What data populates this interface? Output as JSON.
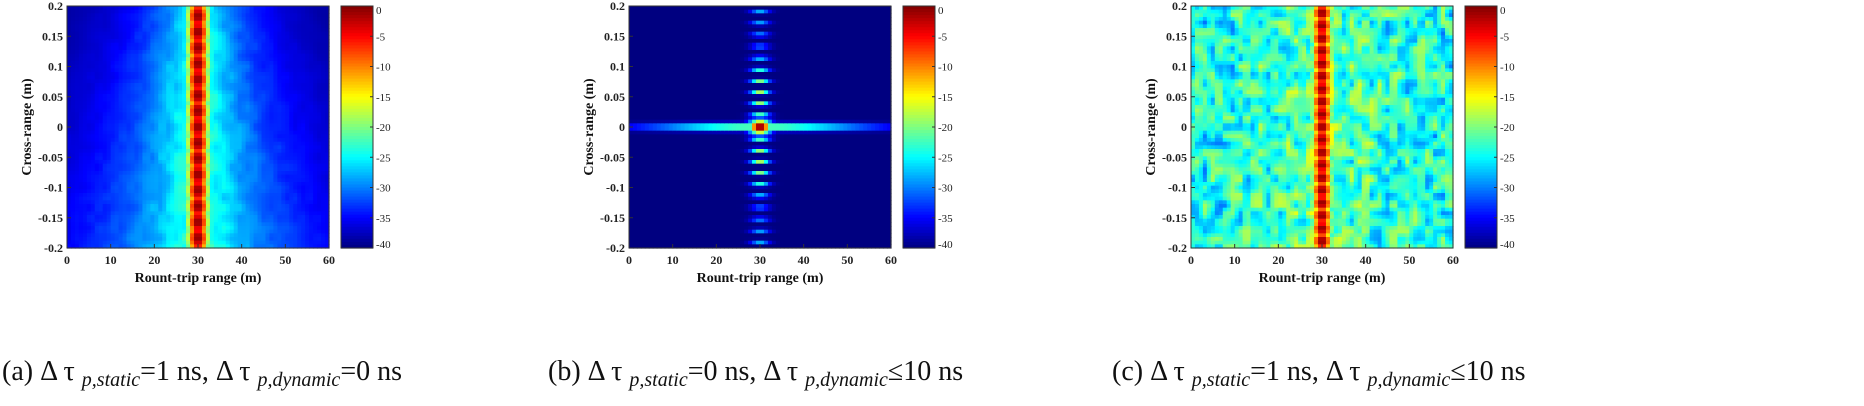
{
  "panels": [
    {
      "caption": {
        "prefix": "(a) Δ τ ",
        "sub1": "p,static",
        "mid": "=1 ns, Δ τ ",
        "sub2": "p,dynamic",
        "suffix": "=0 ns"
      },
      "chart_data": {
        "type": "heatmap",
        "variant": "spread",
        "xlabel": "Rount-trip range (m)",
        "ylabel": "Cross-range (m)",
        "xlim": [
          0,
          60
        ],
        "ylim": [
          -0.2,
          0.2
        ],
        "x_ticks": [
          "0",
          "10",
          "20",
          "30",
          "40",
          "50",
          "60"
        ],
        "y_ticks": [
          "0.2",
          "0.15",
          "0.1",
          "0.05",
          "0",
          "-0.05",
          "-0.1",
          "-0.15",
          "-0.2"
        ],
        "colorbar": {
          "range": [
            -40,
            0
          ],
          "ticks": [
            "0",
            "-5",
            "-10",
            "-15",
            "-20",
            "-25",
            "-30",
            "-35",
            "-40"
          ],
          "colormap": "jet"
        },
        "peak_x": 30
      }
    },
    {
      "caption": {
        "prefix": "(b) Δ τ ",
        "sub1": "p,static",
        "mid": "=0 ns, Δ τ ",
        "sub2": "p,dynamic",
        "suffix": "≤10 ns"
      },
      "chart_data": {
        "type": "heatmap",
        "variant": "cross",
        "xlabel": "Rount-trip range (m)",
        "ylabel": "Cross-range (m)",
        "xlim": [
          0,
          60
        ],
        "ylim": [
          -0.2,
          0.2
        ],
        "x_ticks": [
          "0",
          "10",
          "20",
          "30",
          "40",
          "50",
          "60"
        ],
        "y_ticks": [
          "0.2",
          "0.15",
          "0.1",
          "0.05",
          "0",
          "-0.05",
          "-0.1",
          "-0.15",
          "-0.2"
        ],
        "colorbar": {
          "range": [
            -40,
            0
          ],
          "ticks": [
            "0",
            "-5",
            "-10",
            "-15",
            "-20",
            "-25",
            "-30",
            "-35",
            "-40"
          ],
          "colormap": "jet"
        },
        "peak_x": 30,
        "peak_y": 0
      }
    },
    {
      "caption": {
        "prefix": "(c) Δ τ ",
        "sub1": "p,static",
        "mid": "=1 ns, Δ τ ",
        "sub2": "p,dynamic",
        "suffix": "≤10 ns"
      },
      "chart_data": {
        "type": "heatmap",
        "variant": "speckle",
        "xlabel": "Rount-trip range (m)",
        "ylabel": "Cross-range (m)",
        "xlim": [
          0,
          60
        ],
        "ylim": [
          -0.2,
          0.2
        ],
        "x_ticks": [
          "0",
          "10",
          "20",
          "30",
          "40",
          "50",
          "60"
        ],
        "y_ticks": [
          "0.2",
          "0.15",
          "0.1",
          "0.05",
          "0",
          "-0.05",
          "-0.1",
          "-0.15",
          "-0.2"
        ],
        "colorbar": {
          "range": [
            -40,
            0
          ],
          "ticks": [
            "0",
            "-5",
            "-10",
            "-15",
            "-20",
            "-25",
            "-30",
            "-35",
            "-40"
          ],
          "colormap": "jet"
        },
        "peak_x": 30
      }
    }
  ]
}
